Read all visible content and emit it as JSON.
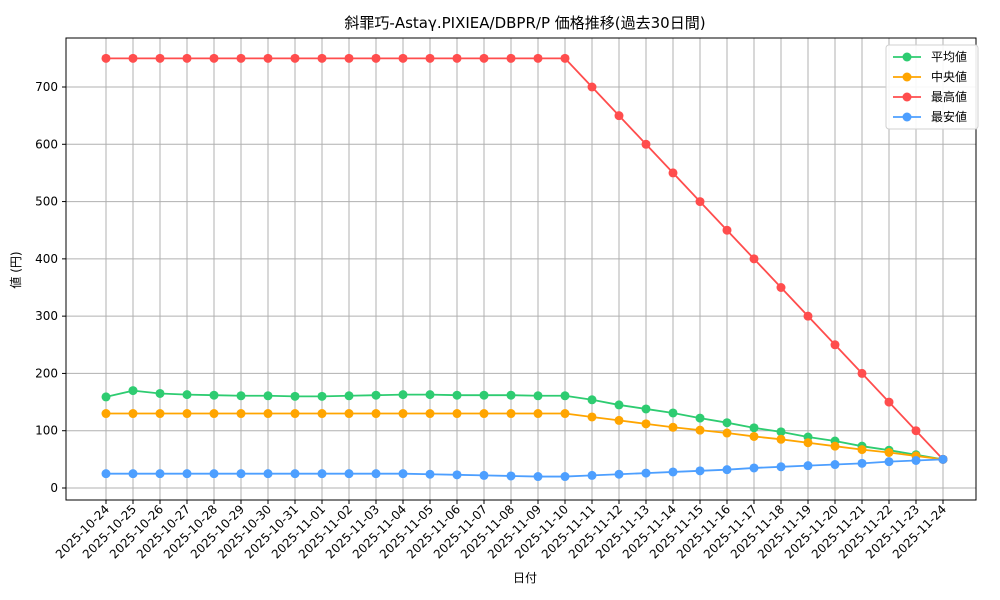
{
  "chart_data": {
    "type": "line",
    "title": "斜罪巧-Astaγ.PIXIEA/DBPR/P 価格推移(過去30日間)",
    "xlabel": "日付",
    "ylabel": "値 (円)",
    "ylim": [
      -20,
      785
    ],
    "yticks": [
      0,
      100,
      200,
      300,
      400,
      500,
      600,
      700
    ],
    "grid": true,
    "legend_position": "upper right",
    "categories": [
      "2025-10-24",
      "2025-10-25",
      "2025-10-26",
      "2025-10-27",
      "2025-10-28",
      "2025-10-29",
      "2025-10-30",
      "2025-10-31",
      "2025-11-01",
      "2025-11-02",
      "2025-11-03",
      "2025-11-04",
      "2025-11-05",
      "2025-11-06",
      "2025-11-07",
      "2025-11-08",
      "2025-11-09",
      "2025-11-10",
      "2025-11-11",
      "2025-11-12",
      "2025-11-13",
      "2025-11-14",
      "2025-11-15",
      "2025-11-16",
      "2025-11-17",
      "2025-11-18",
      "2025-11-19",
      "2025-11-20",
      "2025-11-21",
      "2025-11-22",
      "2025-11-23",
      "2025-11-24"
    ],
    "series": [
      {
        "name": "平均値",
        "color": "#2ecc71",
        "values": [
          159,
          170,
          165,
          163,
          162,
          161,
          161,
          160,
          160,
          161,
          162,
          163,
          163,
          162,
          162,
          162,
          161,
          161,
          154,
          145,
          138,
          131,
          122,
          114,
          105,
          98,
          89,
          82,
          73,
          66,
          58,
          50
        ]
      },
      {
        "name": "中央値",
        "color": "#ffa500",
        "values": [
          130,
          130,
          130,
          130,
          130,
          130,
          130,
          130,
          130,
          130,
          130,
          130,
          130,
          130,
          130,
          130,
          130,
          130,
          124,
          118,
          112,
          106,
          101,
          96,
          90,
          85,
          79,
          73,
          67,
          62,
          56,
          50
        ]
      },
      {
        "name": "最高値",
        "color": "#ff4d4d",
        "values": [
          750,
          750,
          750,
          750,
          750,
          750,
          750,
          750,
          750,
          750,
          750,
          750,
          750,
          750,
          750,
          750,
          750,
          750,
          700,
          650,
          600,
          550,
          500,
          450,
          400,
          350,
          300,
          250,
          200,
          150,
          100,
          50
        ]
      },
      {
        "name": "最安値",
        "color": "#4d9fff",
        "values": [
          25,
          25,
          25,
          25,
          25,
          25,
          25,
          25,
          25,
          25,
          25,
          25,
          24,
          23,
          22,
          21,
          20,
          20,
          22,
          24,
          26,
          28,
          30,
          32,
          35,
          37,
          39,
          41,
          43,
          46,
          48,
          50
        ]
      }
    ]
  }
}
